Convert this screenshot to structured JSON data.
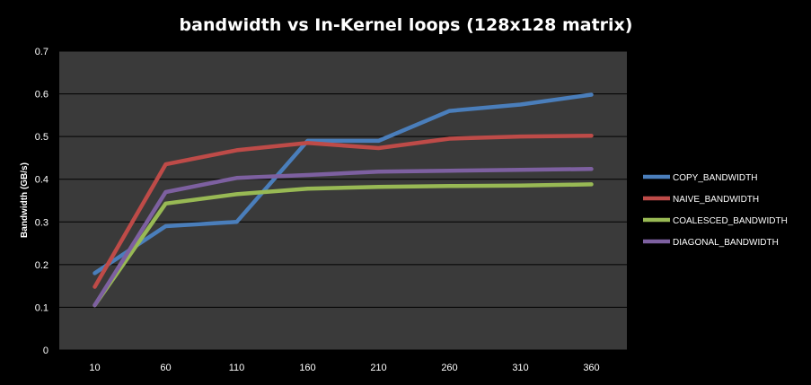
{
  "chart_data": {
    "type": "line",
    "title": "bandwidth vs In-Kernel loops (128x128 matrix)",
    "xlabel": "",
    "ylabel": "Bandwidth  (GB/s)",
    "categories": [
      "10",
      "60",
      "110",
      "160",
      "210",
      "260",
      "310",
      "360"
    ],
    "ylim": [
      0,
      0.7
    ],
    "yticks": [
      "0",
      "0.1",
      "0.2",
      "0.3",
      "0.4",
      "0.5",
      "0.6",
      "0.7"
    ],
    "grid": true,
    "legend_position": "right",
    "background": "#000000",
    "plot_background": "#3a3a3a",
    "series": [
      {
        "name": "COPY_BANDWIDTH",
        "color": "#4a7ebb",
        "values": [
          0.18,
          0.29,
          0.3,
          0.49,
          0.49,
          0.56,
          0.575,
          0.598
        ]
      },
      {
        "name": "NAIVE_BANDWIDTH",
        "color": "#be4b48",
        "values": [
          0.148,
          0.435,
          0.468,
          0.485,
          0.473,
          0.495,
          0.5,
          0.502
        ]
      },
      {
        "name": "COALESCED_BANDWIDTH",
        "color": "#98b954",
        "values": [
          0.105,
          0.343,
          0.365,
          0.378,
          0.382,
          0.384,
          0.385,
          0.388
        ]
      },
      {
        "name": "DIAGONAL_BANDWIDTH",
        "color": "#7d60a0",
        "values": [
          0.105,
          0.37,
          0.403,
          0.41,
          0.418,
          0.42,
          0.422,
          0.424
        ]
      }
    ]
  }
}
